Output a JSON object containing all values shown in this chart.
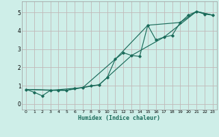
{
  "xlabel": "Humidex (Indice chaleur)",
  "bg_color": "#ceeee8",
  "grid_color": "#c0b8b8",
  "line_color": "#1a6b5a",
  "xlim": [
    -0.5,
    23.5
  ],
  "ylim": [
    -0.3,
    5.6
  ],
  "xticks": [
    0,
    1,
    2,
    3,
    4,
    5,
    6,
    7,
    8,
    9,
    10,
    11,
    12,
    13,
    14,
    15,
    16,
    17,
    18,
    19,
    20,
    21,
    22,
    23
  ],
  "yticks": [
    0,
    1,
    2,
    3,
    4,
    5
  ],
  "series1": [
    [
      0,
      0.8
    ],
    [
      1,
      0.65
    ],
    [
      2,
      0.45
    ],
    [
      3,
      0.75
    ],
    [
      4,
      0.75
    ],
    [
      5,
      0.75
    ],
    [
      6,
      0.85
    ],
    [
      7,
      0.9
    ],
    [
      8,
      1.0
    ],
    [
      9,
      1.05
    ],
    [
      10,
      1.45
    ],
    [
      11,
      2.45
    ],
    [
      12,
      2.8
    ],
    [
      13,
      2.65
    ],
    [
      14,
      2.6
    ],
    [
      15,
      4.3
    ],
    [
      16,
      3.5
    ],
    [
      17,
      3.65
    ],
    [
      18,
      3.75
    ],
    [
      19,
      4.45
    ],
    [
      20,
      4.85
    ],
    [
      21,
      5.05
    ],
    [
      22,
      4.9
    ],
    [
      23,
      4.85
    ]
  ],
  "series2": [
    [
      0,
      0.8
    ],
    [
      3,
      0.75
    ],
    [
      7,
      0.9
    ],
    [
      11,
      2.45
    ],
    [
      15,
      4.3
    ],
    [
      19,
      4.45
    ],
    [
      21,
      5.05
    ],
    [
      23,
      4.85
    ]
  ],
  "series3": [
    [
      0,
      0.8
    ],
    [
      5,
      0.75
    ],
    [
      9,
      1.05
    ],
    [
      13,
      2.65
    ],
    [
      17,
      3.65
    ],
    [
      21,
      5.05
    ],
    [
      23,
      4.85
    ]
  ]
}
